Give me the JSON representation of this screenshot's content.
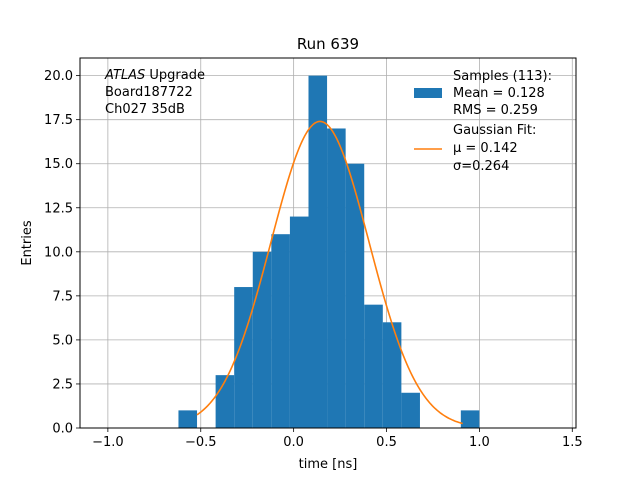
{
  "chart_data": {
    "type": "bar",
    "title": "Run 639",
    "xlabel": "time [ns]",
    "ylabel": "Entries",
    "xlim": [
      -1.15,
      1.52
    ],
    "ylim": [
      0,
      21
    ],
    "grid": true,
    "xticks": [
      -1.0,
      -0.5,
      0.0,
      0.5,
      1.0,
      1.5
    ],
    "xtick_labels": [
      "−1.0",
      "−0.5",
      "0.0",
      "0.5",
      "1.0",
      "1.5"
    ],
    "yticks": [
      0.0,
      2.5,
      5.0,
      7.5,
      10.0,
      12.5,
      15.0,
      17.5,
      20.0
    ],
    "ytick_labels": [
      "0.0",
      "2.5",
      "5.0",
      "7.5",
      "10.0",
      "12.5",
      "15.0",
      "17.5",
      "20.0"
    ],
    "histogram": {
      "name": "Samples (113):",
      "color": "#1f77b4",
      "bins": [
        {
          "x0": -0.62,
          "x1": -0.52,
          "count": 1
        },
        {
          "x0": -0.42,
          "x1": -0.32,
          "count": 3
        },
        {
          "x0": -0.32,
          "x1": -0.22,
          "count": 8
        },
        {
          "x0": -0.22,
          "x1": -0.12,
          "count": 10
        },
        {
          "x0": -0.12,
          "x1": -0.02,
          "count": 11
        },
        {
          "x0": -0.02,
          "x1": 0.08,
          "count": 12
        },
        {
          "x0": 0.08,
          "x1": 0.18,
          "count": 20
        },
        {
          "x0": 0.18,
          "x1": 0.28,
          "count": 17
        },
        {
          "x0": 0.28,
          "x1": 0.38,
          "count": 15
        },
        {
          "x0": 0.38,
          "x1": 0.48,
          "count": 7
        },
        {
          "x0": 0.48,
          "x1": 0.58,
          "count": 6
        },
        {
          "x0": 0.58,
          "x1": 0.68,
          "count": 2
        },
        {
          "x0": 0.9,
          "x1": 1.0,
          "count": 1
        }
      ]
    },
    "fit": {
      "name": "Gaussian Fit:",
      "color": "#ff7f0e",
      "amplitude": 17.4,
      "mu": 0.142,
      "sigma": 0.264,
      "x_range": [
        -0.52,
        0.91
      ]
    },
    "legend": {
      "placement": "top-right",
      "samples_label": "Samples (113):",
      "samples_mean": " Mean = 0.128",
      "samples_rms": " RMS = 0.259",
      "fit_label": "Gaussian Fit:",
      "fit_mu": " μ = 0.142",
      "fit_sigma": " σ=0.264"
    },
    "annotation": {
      "atlas": "ATLAS",
      "upgrade": " Upgrade",
      "board": " Board187722",
      "channel": " Ch027 35dB"
    }
  }
}
